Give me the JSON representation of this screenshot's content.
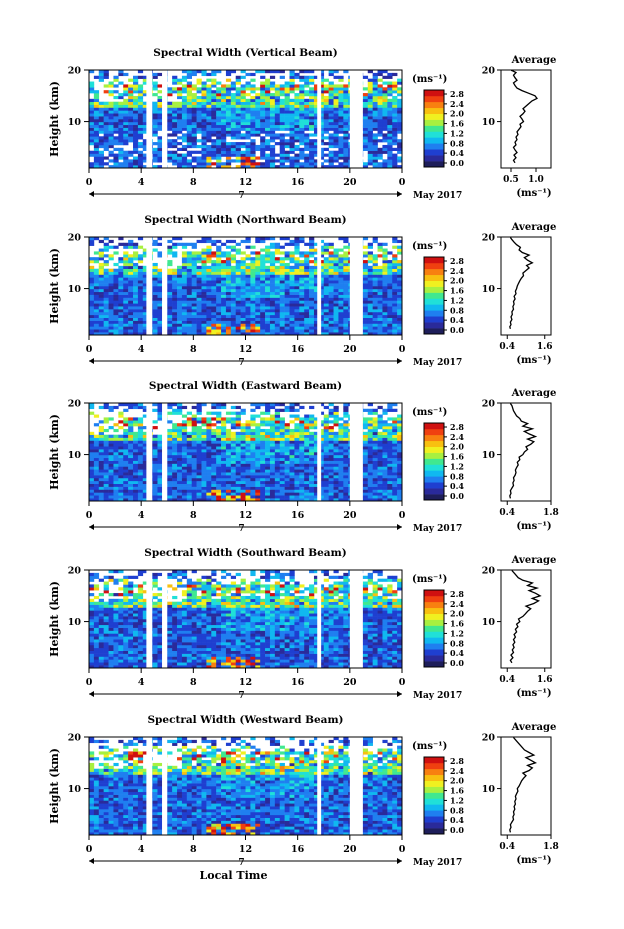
{
  "figure": {
    "date_label": "May 2017",
    "day_label": "7",
    "xlabel": "Local Time",
    "avg_title": "Average",
    "unit_label": "(ms⁻¹)"
  },
  "colorbar": {
    "ticks": [
      "2.8",
      "2.4",
      "2.0",
      "1.6",
      "1.2",
      "0.8",
      "0.4",
      "0.0"
    ],
    "colors": [
      "#1e1e5a",
      "#2a2a9a",
      "#1f3fd0",
      "#1f7ff0",
      "#10b8f0",
      "#20e0d8",
      "#40e890",
      "#a8f040",
      "#f0f020",
      "#f8c010",
      "#f88010",
      "#f04010",
      "#d01010"
    ]
  },
  "chart_data": [
    {
      "type": "heatmap",
      "title": "Spectral Width (Vertical Beam)",
      "ylabel": "Height (km)",
      "x_ticks": [
        "0",
        "4",
        "8",
        "12",
        "16",
        "20",
        "0"
      ],
      "y_ticks": [
        "20",
        "10"
      ],
      "xlim": [
        0,
        24
      ],
      "ylim": [
        1,
        20
      ],
      "gaps": [
        [
          4.4,
          4.85
        ],
        [
          5.6,
          6.0
        ],
        [
          17.5,
          17.8
        ],
        [
          20.0,
          21.0
        ]
      ],
      "avg_profile": {
        "xlabel": "(ms⁻¹)",
        "x_ticks": [
          "0.5",
          "1.0"
        ],
        "xlim": [
          0.3,
          1.3
        ],
        "x": [
          0.58,
          0.55,
          0.6,
          0.56,
          0.62,
          0.58,
          0.55,
          0.6,
          0.58,
          0.62,
          0.6,
          0.64,
          0.62,
          0.66,
          0.7,
          0.68,
          0.75,
          0.72,
          0.68,
          0.74,
          0.78,
          0.74,
          0.8,
          0.86,
          0.92,
          1.02,
          0.98,
          0.85,
          0.72,
          0.62,
          0.58,
          0.55,
          0.62,
          0.58,
          0.55,
          0.6,
          0.52,
          0.5
        ],
        "y": [
          2,
          2.5,
          3,
          3.5,
          4,
          4.5,
          5,
          5.5,
          6,
          6.5,
          7,
          7.5,
          8,
          8.5,
          9,
          9.5,
          10,
          10.5,
          11,
          11.5,
          12,
          12.5,
          13,
          13.5,
          14,
          14.5,
          15,
          15.5,
          16,
          16.5,
          17,
          17.5,
          18,
          18.5,
          19,
          19.5,
          20,
          20
        ]
      }
    },
    {
      "type": "heatmap",
      "title": "Spectral Width (Northward Beam)",
      "ylabel": "Height (km)",
      "x_ticks": [
        "0",
        "4",
        "8",
        "12",
        "16",
        "20",
        "0"
      ],
      "y_ticks": [
        "20",
        "10"
      ],
      "xlim": [
        0,
        24
      ],
      "ylim": [
        1,
        20
      ],
      "gaps": [
        [
          4.4,
          4.85
        ],
        [
          5.6,
          6.0
        ],
        [
          17.5,
          17.8
        ],
        [
          20.0,
          21.0
        ]
      ],
      "avg_profile": {
        "xlabel": "(ms⁻¹)",
        "x_ticks": [
          "0.4",
          "1.6"
        ],
        "xlim": [
          0.2,
          1.8
        ],
        "x": [
          0.5,
          0.48,
          0.52,
          0.5,
          0.55,
          0.52,
          0.56,
          0.55,
          0.6,
          0.58,
          0.62,
          0.6,
          0.65,
          0.62,
          0.68,
          0.66,
          0.7,
          0.72,
          0.76,
          0.8,
          0.85,
          0.92,
          0.9,
          1.0,
          1.1,
          1.02,
          1.2,
          1.05,
          0.95,
          1.1,
          0.88,
          0.78,
          0.82,
          0.7,
          0.62,
          0.55,
          0.5
        ],
        "y": [
          2.2,
          2.6,
          3,
          3.5,
          4,
          4.5,
          5,
          5.5,
          6,
          6.5,
          7,
          7.5,
          8,
          8.5,
          9,
          9.5,
          10,
          10.5,
          11,
          11.5,
          12,
          12.5,
          13,
          13.5,
          14,
          14.5,
          15,
          15.5,
          16,
          16.5,
          17,
          17.5,
          18,
          18.5,
          19,
          19.5,
          20
        ]
      }
    },
    {
      "type": "heatmap",
      "title": "Spectral Width (Eastward Beam)",
      "ylabel": "Height (km)",
      "x_ticks": [
        "0",
        "4",
        "8",
        "12",
        "16",
        "20",
        "0"
      ],
      "y_ticks": [
        "20",
        "10"
      ],
      "xlim": [
        0,
        24
      ],
      "ylim": [
        1,
        20
      ],
      "gaps": [
        [
          4.4,
          4.85
        ],
        [
          5.6,
          6.0
        ],
        [
          17.5,
          17.8
        ],
        [
          20.0,
          21.0
        ]
      ],
      "avg_profile": {
        "xlabel": "(ms⁻¹)",
        "x_ticks": [
          "0.4",
          "1.8"
        ],
        "xlim": [
          0.2,
          1.8
        ],
        "x": [
          0.5,
          0.48,
          0.52,
          0.5,
          0.55,
          0.6,
          0.58,
          0.62,
          0.6,
          0.65,
          0.68,
          0.66,
          0.7,
          0.75,
          0.72,
          0.8,
          0.78,
          0.9,
          0.95,
          1.05,
          1.0,
          1.15,
          1.25,
          1.05,
          1.3,
          1.1,
          0.95,
          1.2,
          0.9,
          1.05,
          0.85,
          0.8,
          0.7,
          0.6,
          0.55,
          0.5
        ],
        "y": [
          1.5,
          2,
          2.5,
          3,
          3.5,
          4,
          4.5,
          5,
          5.5,
          6,
          6.5,
          7,
          7.5,
          8,
          8.5,
          9,
          9.5,
          10,
          10.5,
          11,
          11.5,
          12,
          12.5,
          13,
          13.5,
          14,
          14.5,
          15,
          15.5,
          16,
          16.5,
          17,
          17.5,
          18.5,
          19.5,
          20
        ]
      }
    },
    {
      "type": "heatmap",
      "title": "Spectral Width (Southward Beam)",
      "ylabel": "Height (km)",
      "x_ticks": [
        "0",
        "4",
        "8",
        "12",
        "16",
        "20",
        "0"
      ],
      "y_ticks": [
        "20",
        "10"
      ],
      "xlim": [
        0,
        24
      ],
      "ylim": [
        1,
        20
      ],
      "gaps": [
        [
          4.4,
          4.85
        ],
        [
          5.6,
          6.0
        ],
        [
          17.5,
          17.8
        ],
        [
          20.0,
          21.0
        ]
      ],
      "avg_profile": {
        "xlabel": "(ms⁻¹)",
        "x_ticks": [
          "0.4",
          "1.6"
        ],
        "xlim": [
          0.2,
          1.8
        ],
        "x": [
          0.55,
          0.5,
          0.58,
          0.52,
          0.6,
          0.56,
          0.62,
          0.58,
          0.64,
          0.6,
          0.66,
          0.62,
          0.7,
          0.66,
          0.74,
          0.7,
          0.8,
          0.76,
          0.9,
          0.98,
          1.05,
          1.15,
          1.0,
          1.25,
          1.4,
          1.2,
          1.45,
          1.3,
          1.1,
          1.35,
          1.05,
          1.2,
          0.9,
          0.75,
          0.65,
          0.55
        ],
        "y": [
          2,
          2.5,
          3,
          3.5,
          4,
          4.5,
          5,
          5.5,
          6,
          6.5,
          7,
          7.5,
          8,
          8.5,
          9,
          9.5,
          10,
          10.5,
          11,
          11.5,
          12,
          12.5,
          13,
          13.5,
          14,
          14.5,
          15,
          15.5,
          16,
          16.5,
          17,
          17.5,
          18,
          18.5,
          19.2,
          20
        ]
      }
    },
    {
      "type": "heatmap",
      "title": "Spectral Width (Westward Beam)",
      "ylabel": "Height (km)",
      "x_ticks": [
        "0",
        "4",
        "8",
        "12",
        "16",
        "20",
        "0"
      ],
      "y_ticks": [
        "20",
        "10"
      ],
      "xlim": [
        0,
        24
      ],
      "ylim": [
        1,
        20
      ],
      "gaps": [
        [
          4.4,
          4.85
        ],
        [
          5.6,
          6.0
        ],
        [
          17.5,
          17.8
        ],
        [
          20.0,
          21.0
        ]
      ],
      "avg_profile": {
        "xlabel": "(ms⁻¹)",
        "x_ticks": [
          "0.4",
          "1.8"
        ],
        "xlim": [
          0.2,
          1.8
        ],
        "x": [
          0.5,
          0.48,
          0.52,
          0.5,
          0.55,
          0.6,
          0.58,
          0.62,
          0.6,
          0.64,
          0.62,
          0.66,
          0.64,
          0.68,
          0.66,
          0.7,
          0.74,
          0.72,
          0.78,
          0.82,
          0.86,
          0.92,
          1.0,
          0.9,
          1.1,
          1.2,
          1.05,
          1.3,
          1.15,
          1.0,
          1.25,
          1.1,
          0.95,
          0.8,
          0.7,
          0.6
        ],
        "y": [
          1.5,
          2,
          2.5,
          3,
          3.5,
          4,
          4.5,
          5,
          5.5,
          6,
          6.5,
          7,
          7.5,
          8,
          8.5,
          9,
          9.5,
          10,
          10.5,
          11,
          11.5,
          12,
          12.5,
          13,
          13.5,
          14,
          14.5,
          15,
          15.5,
          16,
          16.5,
          17,
          17.5,
          18.5,
          19.2,
          20
        ]
      }
    }
  ]
}
